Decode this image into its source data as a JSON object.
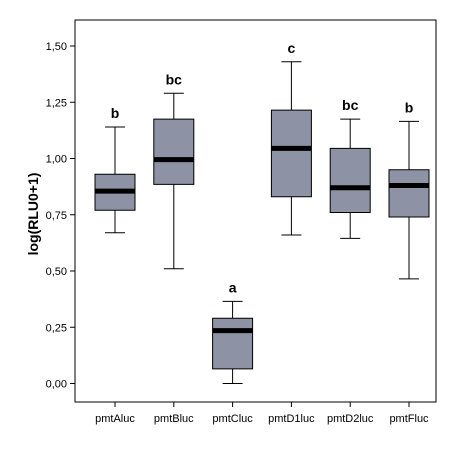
{
  "chart_data": {
    "type": "boxplot",
    "ylabel": "log(RLU0+1)",
    "xlabel": "",
    "ylim": [
      -0.09,
      1.6
    ],
    "y_ticks": [
      "0,00",
      "0,25",
      "0,50",
      "0,75",
      "1,00",
      "1,25",
      "1,50"
    ],
    "y_tick_values": [
      0,
      0.25,
      0.5,
      0.75,
      1.0,
      1.25,
      1.5
    ],
    "categories": [
      "pmtAluc",
      "pmtBluc",
      "pmtCluc",
      "pmtD1luc",
      "pmtD2luc",
      "pmtFluc"
    ],
    "boxes": [
      {
        "whisker_low": 0.67,
        "q1": 0.77,
        "median": 0.855,
        "q3": 0.93,
        "whisker_high": 1.14,
        "sig": "b"
      },
      {
        "whisker_low": 0.51,
        "q1": 0.885,
        "median": 0.995,
        "q3": 1.175,
        "whisker_high": 1.29,
        "sig": "bc"
      },
      {
        "whisker_low": 0.0,
        "q1": 0.065,
        "median": 0.235,
        "q3": 0.29,
        "whisker_high": 0.365,
        "sig": "a"
      },
      {
        "whisker_low": 0.66,
        "q1": 0.83,
        "median": 1.045,
        "q3": 1.215,
        "whisker_high": 1.43,
        "sig": "c"
      },
      {
        "whisker_low": 0.645,
        "q1": 0.76,
        "median": 0.87,
        "q3": 1.045,
        "whisker_high": 1.175,
        "sig": "bc"
      },
      {
        "whisker_low": 0.465,
        "q1": 0.74,
        "median": 0.88,
        "q3": 0.95,
        "whisker_high": 1.165,
        "sig": "b"
      }
    ],
    "box_color": "#8d93a5",
    "median_color": "#000000",
    "grid": false
  }
}
